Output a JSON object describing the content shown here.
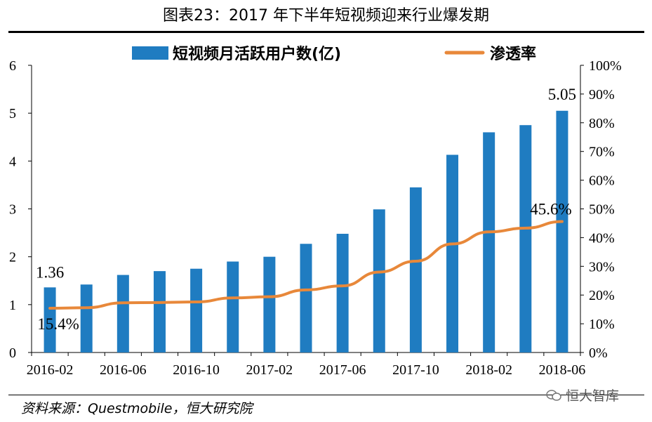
{
  "title": "图表23：2017 年下半年短视频迎来行业爆发期",
  "source": "资料来源：Questmobile，恒大研究院",
  "watermark": "恒大智库",
  "colors": {
    "bar": "#1f7cc1",
    "line": "#e8883a"
  },
  "chart_data": {
    "type": "bar+line",
    "categories": [
      "2016-02",
      "2016-04",
      "2016-06",
      "2016-08",
      "2016-10",
      "2016-12",
      "2017-02",
      "2017-04",
      "2017-06",
      "2017-08",
      "2017-10",
      "2017-12",
      "2018-02",
      "2018-04",
      "2018-06"
    ],
    "x_tick_labels": [
      "2016-02",
      "2016-06",
      "2016-10",
      "2017-02",
      "2017-06",
      "2017-10",
      "2018-02",
      "2018-06"
    ],
    "series": [
      {
        "name": "短视频月活跃用户数(亿)",
        "type": "bar",
        "axis": "left",
        "values": [
          1.36,
          1.42,
          1.62,
          1.7,
          1.75,
          1.9,
          2.0,
          2.27,
          2.48,
          2.99,
          3.45,
          4.13,
          4.6,
          4.75,
          5.05
        ]
      },
      {
        "name": "渗透率",
        "type": "line",
        "axis": "right",
        "values": [
          15.4,
          15.6,
          17.3,
          17.4,
          17.6,
          19.0,
          19.4,
          21.8,
          23.2,
          28.0,
          31.8,
          37.8,
          42.0,
          43.3,
          45.6
        ]
      }
    ],
    "y_left": {
      "min": 0,
      "max": 6,
      "ticks": [
        "0",
        "1",
        "2",
        "3",
        "4",
        "5",
        "6"
      ]
    },
    "y_right": {
      "min": 0,
      "max": 100,
      "ticks": [
        "0%",
        "10%",
        "20%",
        "30%",
        "40%",
        "50%",
        "60%",
        "70%",
        "80%",
        "90%",
        "100%"
      ]
    },
    "annotations": [
      "1.36",
      "15.4%",
      "5.05",
      "45.6%"
    ],
    "legend": "top"
  }
}
